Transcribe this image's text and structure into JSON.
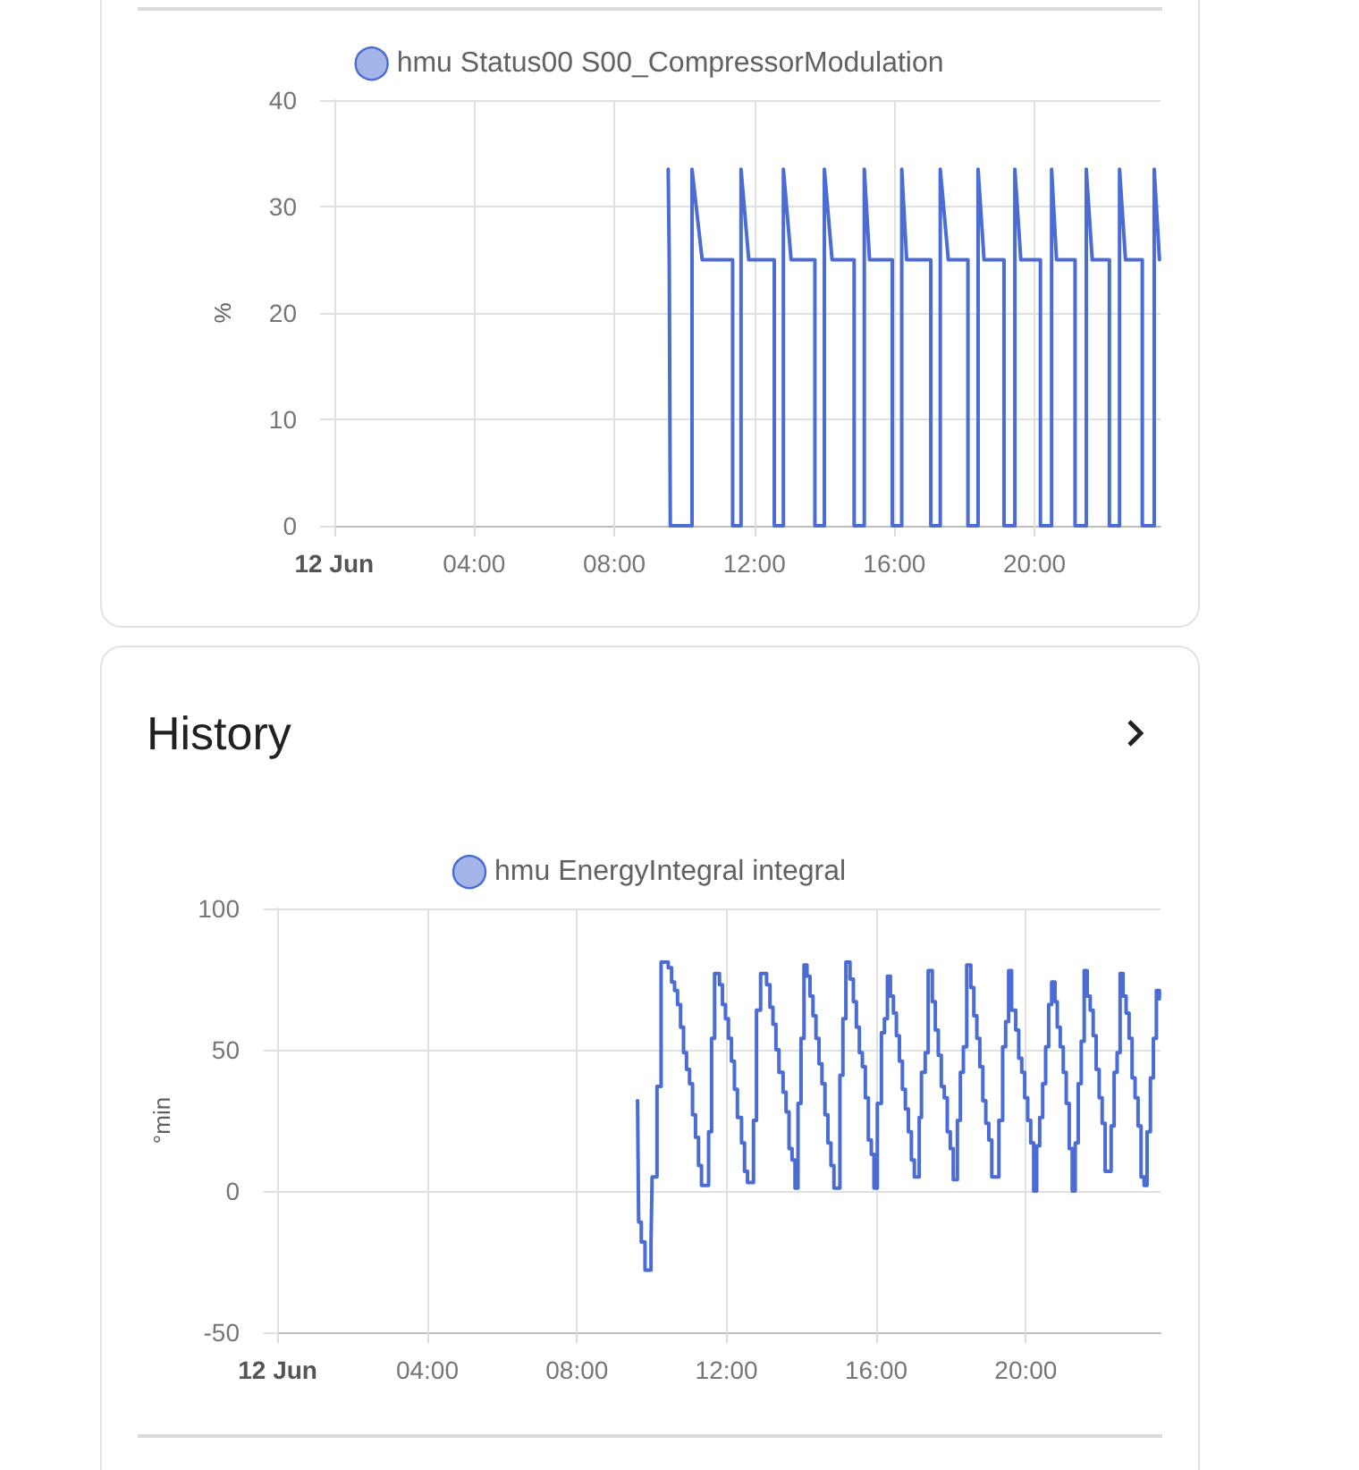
{
  "chart_data": [
    {
      "type": "line",
      "ylabel": "%",
      "legend": "top",
      "grid": true,
      "xlim": [
        -0.3,
        23.6
      ],
      "xticks": [
        {
          "value": 0,
          "label": "12 Jun"
        },
        {
          "value": 4,
          "label": "04:00"
        },
        {
          "value": 8,
          "label": "08:00"
        },
        {
          "value": 12,
          "label": "12:00"
        },
        {
          "value": 16,
          "label": "16:00"
        },
        {
          "value": 20,
          "label": "20:00"
        }
      ],
      "ylim": [
        0,
        40
      ],
      "yticks": [
        0,
        10,
        20,
        30,
        40
      ],
      "x": [
        9.54,
        9.57,
        9.6,
        9.6,
        10.22,
        10.22,
        10.51,
        11.38,
        11.38,
        11.62,
        11.62,
        11.84,
        12.57,
        12.57,
        12.83,
        12.83,
        13.05,
        13.73,
        13.73,
        14.0,
        14.0,
        14.22,
        14.85,
        14.85,
        15.14,
        15.14,
        15.29,
        15.94,
        15.94,
        16.21,
        16.21,
        16.35,
        17.04,
        17.04,
        17.31,
        17.31,
        17.54,
        18.1,
        18.1,
        18.39,
        18.39,
        18.56,
        19.13,
        19.13,
        19.44,
        19.44,
        19.61,
        20.17,
        20.17,
        20.49,
        20.49,
        20.63,
        21.16,
        21.16,
        21.48,
        21.48,
        21.65,
        22.14,
        22.14,
        22.43,
        22.43,
        22.6,
        23.08,
        23.08,
        23.42,
        23.42,
        23.57
      ],
      "series": [
        {
          "name": "hmu Status00 S00_CompressorModulation",
          "color": "#4a6cd4",
          "values": [
            33.5,
            25,
            25,
            0,
            0,
            33.5,
            25,
            25,
            0,
            0,
            33.5,
            25,
            25,
            0,
            0,
            33.5,
            25,
            25,
            0,
            0,
            33.5,
            25,
            25,
            0,
            0,
            33.5,
            25,
            25,
            0,
            0,
            33.5,
            25,
            25,
            0,
            0,
            33.5,
            25,
            25,
            0,
            0,
            33.5,
            25,
            25,
            0,
            0,
            33.5,
            25,
            25,
            0,
            0,
            33.5,
            25,
            25,
            0,
            0,
            33.5,
            25,
            25,
            0,
            0,
            33.5,
            25,
            25,
            0,
            0,
            33.5,
            25
          ]
        }
      ]
    },
    {
      "type": "step",
      "title": "History",
      "ylabel": "°min",
      "legend": "top",
      "grid": true,
      "xlim": [
        -0.3,
        23.6
      ],
      "xticks": [
        {
          "value": 0,
          "label": "12 Jun"
        },
        {
          "value": 4,
          "label": "04:00"
        },
        {
          "value": 8,
          "label": "08:00"
        },
        {
          "value": 12,
          "label": "12:00"
        },
        {
          "value": 16,
          "label": "16:00"
        },
        {
          "value": 20,
          "label": "20:00"
        }
      ],
      "ylim": [
        -50,
        100
      ],
      "yticks": [
        -50,
        0,
        50,
        100
      ],
      "x": [
        9.62,
        9.65,
        9.72,
        9.82,
        9.98,
        10.01,
        10.14,
        10.25,
        10.44,
        10.53,
        10.61,
        10.69,
        10.77,
        10.85,
        10.93,
        11.01,
        11.09,
        11.17,
        11.25,
        11.33,
        11.52,
        11.6,
        11.68,
        11.81,
        11.89,
        11.97,
        12.05,
        12.13,
        12.21,
        12.29,
        12.4,
        12.48,
        12.56,
        12.72,
        12.8,
        12.91,
        13.07,
        13.16,
        13.24,
        13.32,
        13.4,
        13.51,
        13.59,
        13.67,
        13.75,
        13.83,
        13.91,
        13.99,
        14.07,
        14.15,
        14.23,
        14.31,
        14.39,
        14.47,
        14.55,
        14.63,
        14.71,
        14.79,
        14.87,
        15.03,
        15.11,
        15.19,
        15.3,
        15.39,
        15.47,
        15.55,
        15.63,
        15.71,
        15.79,
        15.87,
        15.94,
        16.03,
        16.14,
        16.22,
        16.3,
        16.38,
        16.46,
        16.54,
        16.62,
        16.7,
        16.78,
        16.86,
        16.94,
        17.02,
        17.15,
        17.21,
        17.31,
        17.39,
        17.5,
        17.58,
        17.66,
        17.74,
        17.82,
        17.9,
        17.98,
        18.06,
        18.17,
        18.25,
        18.33,
        18.42,
        18.53,
        18.61,
        18.69,
        18.77,
        18.85,
        18.93,
        19.01,
        19.09,
        19.28,
        19.38,
        19.46,
        19.54,
        19.62,
        19.73,
        19.81,
        19.89,
        19.97,
        20.05,
        20.13,
        20.21,
        20.29,
        20.37,
        20.45,
        20.53,
        20.61,
        20.69,
        20.78,
        20.84,
        20.92,
        21.0,
        21.08,
        21.16,
        21.24,
        21.32,
        21.4,
        21.48,
        21.56,
        21.64,
        21.72,
        21.8,
        21.88,
        21.96,
        22.04,
        22.12,
        22.28,
        22.36,
        22.44,
        22.52,
        22.6,
        22.68,
        22.76,
        22.84,
        22.92,
        23.0,
        23.08,
        23.16,
        23.24,
        23.33,
        23.41,
        23.49,
        23.57
      ],
      "series": [
        {
          "name": "hmu EnergyIntegral integral",
          "color": "#4a6cd4",
          "values": [
            32,
            -11,
            -18,
            -28,
            -18,
            5,
            37,
            81,
            79,
            74,
            71,
            66,
            58,
            49,
            43,
            38,
            27,
            19,
            9,
            2,
            21,
            54,
            77,
            73,
            66,
            61,
            54,
            46,
            36,
            26,
            17,
            7,
            3,
            25,
            64,
            77,
            73,
            65,
            59,
            50,
            42,
            35,
            28,
            15,
            11,
            1,
            31,
            54,
            80,
            76,
            69,
            62,
            54,
            45,
            38,
            27,
            17,
            9,
            1,
            41,
            61,
            81,
            75,
            67,
            58,
            49,
            44,
            33,
            18,
            13,
            1,
            31,
            56,
            61,
            76,
            69,
            63,
            55,
            46,
            36,
            29,
            21,
            11,
            5,
            26,
            42,
            49,
            78,
            67,
            57,
            48,
            37,
            33,
            21,
            15,
            4,
            25,
            42,
            51,
            80,
            72,
            62,
            54,
            44,
            32,
            24,
            18,
            5,
            25,
            51,
            60,
            78,
            64,
            57,
            47,
            42,
            33,
            25,
            17,
            0,
            16,
            26,
            38,
            51,
            66,
            74,
            67,
            58,
            51,
            42,
            31,
            15,
            0,
            17,
            38,
            53,
            78,
            69,
            64,
            55,
            43,
            33,
            24,
            7,
            23,
            42,
            49,
            77,
            69,
            63,
            54,
            40,
            33,
            23,
            5,
            2,
            21,
            40,
            54,
            71,
            68
          ]
        }
      ]
    }
  ]
}
